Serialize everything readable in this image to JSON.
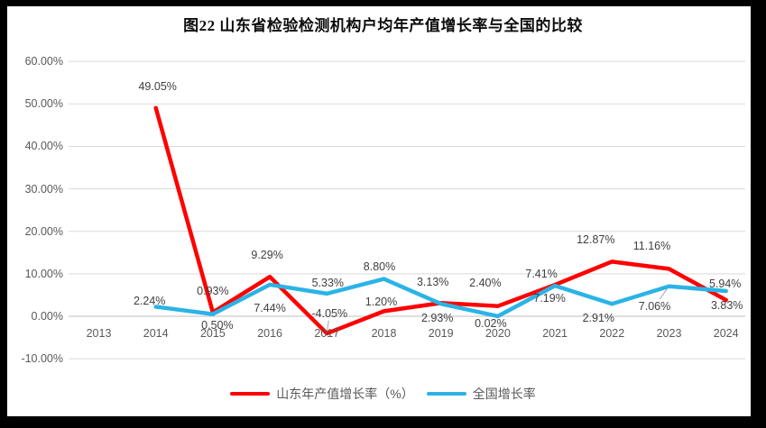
{
  "chart_data": {
    "type": "line",
    "title": "图22 山东省检验检测机构户均年产值增长率与全国的比较",
    "categories": [
      "2013",
      "2014",
      "2015",
      "2016",
      "2017",
      "2018",
      "2019",
      "2020",
      "2021",
      "2022",
      "2023",
      "2024"
    ],
    "series": [
      {
        "name": "山东年产值增长率（%）",
        "color": "#FF0000",
        "values": [
          null,
          49.05,
          0.93,
          9.29,
          -4.05,
          1.2,
          3.13,
          2.4,
          7.41,
          12.87,
          11.16,
          3.83
        ],
        "labels": [
          null,
          "49.05%",
          "0.93%",
          "9.29%",
          "-4.05%",
          "1.20%",
          "3.13%",
          "2.40%",
          "7.41%",
          "12.87%",
          "11.16%",
          "3.83%"
        ]
      },
      {
        "name": "全国增长率",
        "color": "#2BB3E6",
        "values": [
          null,
          2.24,
          0.5,
          7.44,
          5.33,
          8.8,
          2.93,
          0.02,
          7.19,
          2.91,
          7.06,
          5.94
        ],
        "labels": [
          null,
          "2.24%",
          "0.50%",
          "7.44%",
          "5.33%",
          "8.80%",
          "2.93%",
          "0.02%",
          "7.19%",
          "2.91%",
          "7.06%",
          "5.94%"
        ]
      }
    ],
    "y_axis": {
      "tick_labels": [
        "60.00%",
        "50.00%",
        "40.00%",
        "30.00%",
        "20.00%",
        "10.00%",
        "0.00%",
        "-10.00%"
      ],
      "tick_values": [
        60,
        50,
        40,
        30,
        20,
        10,
        0,
        -10
      ],
      "ylim": [
        -10,
        60
      ]
    },
    "grid": true,
    "legend_position": "bottom",
    "colors": {
      "grid": "#D9D9D9",
      "axis_line": "#BFBFBF",
      "leader": "#A6A6A6"
    },
    "layout": {
      "label_offsets": [
        [
          null,
          [
            2,
            -24
          ],
          [
            0,
            -24
          ],
          [
            -3,
            -24
          ],
          [
            3,
            -22
          ],
          [
            -3,
            -10
          ],
          [
            -9,
            -23
          ],
          [
            -14,
            -26
          ],
          [
            -15,
            -12
          ],
          [
            -18,
            -24
          ],
          [
            -19,
            -25
          ],
          [
            1,
            6
          ]
        ],
        [
          null,
          [
            -7,
            -6
          ],
          [
            5,
            12
          ],
          [
            0,
            26
          ],
          [
            1,
            -12
          ],
          [
            -5,
            -14
          ],
          [
            -4,
            16
          ],
          [
            -8,
            8
          ],
          [
            -6,
            14
          ],
          [
            -15,
            16
          ],
          [
            -16,
            22
          ],
          [
            -1,
            -8
          ]
        ]
      ],
      "leaders": [
        {
          "series": 0,
          "index": 4
        },
        {
          "series": 1,
          "index": 10
        }
      ]
    }
  }
}
